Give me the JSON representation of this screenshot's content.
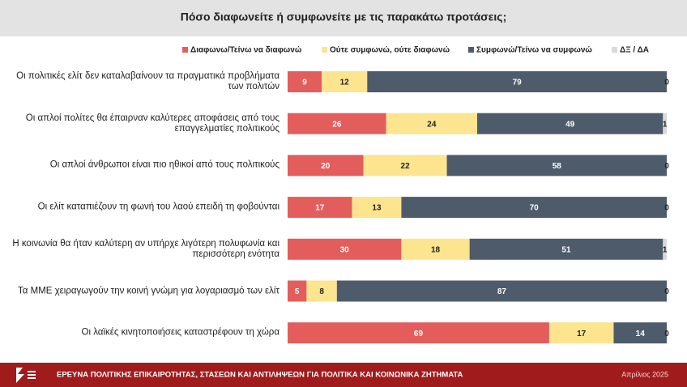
{
  "chart_data": {
    "type": "stacked-barh",
    "title": "Πόσο διαφωνείτε ή συμφωνείτε με τις παρακάτω προτάσεις;",
    "categories": [
      "Οι πολιτικές ελίτ δεν καταλαβαίνουν τα πραγματικά προβλήματα των πολιτών",
      "Οι απλοί πολίτες θα έπαιρναν καλύτερες αποφάσεις από τους επαγγελματίες πολιτικούς",
      "Οι απλοί άνθρωποι είναι πιο ηθικοί από τους πολιτικούς",
      "Οι ελίτ καταπιέζουν τη φωνή του λαού επειδή τη φοβούνται",
      "Η κοινωνία θα ήταν καλύτερη αν υπήρχε λιγότερη πολυφωνία και περισσότερη ενότητα",
      "Τα ΜΜΕ χειραγωγούν την κοινή γνώμη για λογαριασμό των ελίτ",
      "Οι λαϊκές κινητοποιήσεις καταστρέφουν τη χώρα"
    ],
    "series": [
      {
        "name": "Διαφωνω/Τείνω να διαφωνώ",
        "color": "#e35d5d",
        "values": [
          9,
          26,
          20,
          17,
          30,
          5,
          69
        ]
      },
      {
        "name": "Ούτε συμφωνώ, ούτε διαφωνώ",
        "color": "#fde48f",
        "values": [
          12,
          24,
          22,
          13,
          18,
          8,
          17
        ]
      },
      {
        "name": "Συμφωνώ/Τείνω να συμφωνώ",
        "color": "#4e5b6b",
        "values": [
          79,
          49,
          58,
          70,
          51,
          87,
          14
        ]
      },
      {
        "name": "ΔΞ / ΔΑ",
        "color": "#d9d9d9",
        "values": [
          0,
          1,
          0,
          0,
          1,
          0,
          0
        ]
      }
    ],
    "xlim": [
      0,
      100
    ],
    "legend": "top"
  },
  "footer": {
    "title": "ΕΡΕΥΝΑ ΠΟΛΙΤΙΚΗΣ ΕΠΙΚΑΙΡΟΤΗΤΑΣ, ΣΤΑΣΕΩΝ ΚΑΙ ΑΝΤΙΛΗΨΕΩΝ ΓΙΑ ΠΟΛΙΤΙΚΑ ΚΑΙ ΚΟΙΝΩΝΙΚΑ ΖΗΤΗΜΑΤΑ",
    "date": "Απρίλιος 2025"
  }
}
